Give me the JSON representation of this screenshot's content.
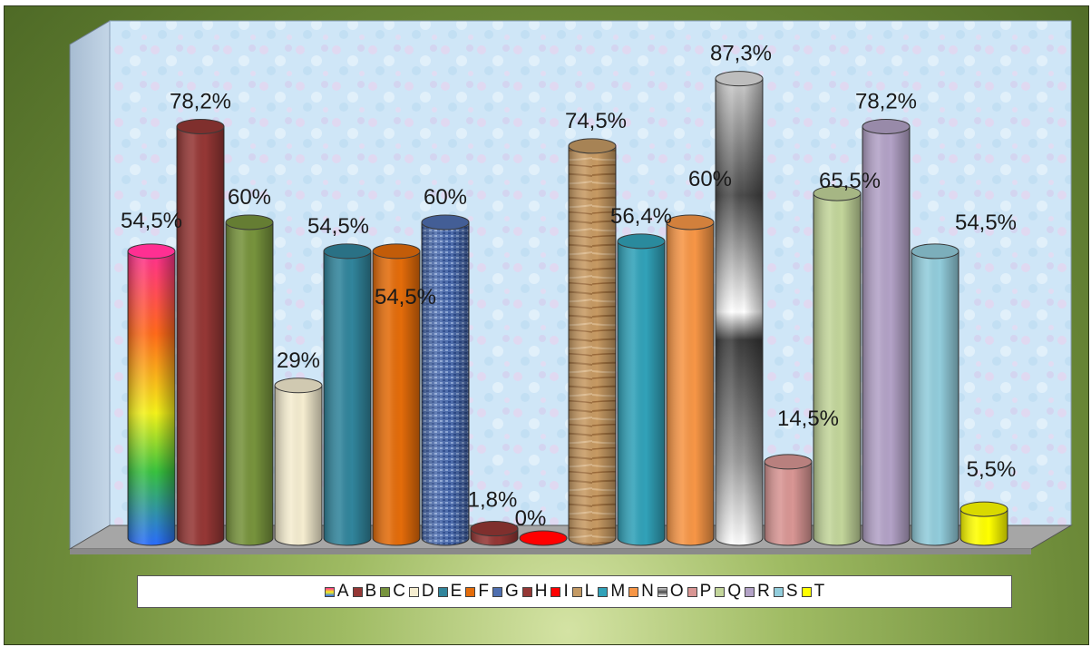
{
  "chart_data": {
    "type": "bar",
    "style": "3d-cylinder",
    "categories": [
      "A",
      "B",
      "C",
      "D",
      "E",
      "F",
      "G",
      "H",
      "I",
      "L",
      "M",
      "N",
      "O",
      "P",
      "Q",
      "R",
      "S",
      "T"
    ],
    "values": [
      54.5,
      78.2,
      60,
      29,
      54.5,
      54.5,
      60,
      1.8,
      0,
      74.5,
      56.4,
      60,
      87.3,
      14.5,
      65.5,
      78.2,
      54.5,
      5.5
    ],
    "data_labels": [
      "54,5%",
      "78,2%",
      "60%",
      "29%",
      "54,5%",
      "54,5%",
      "60%",
      "1,8%",
      "0%",
      "74,5%",
      "56,4%",
      "60%",
      "87,3%",
      "14,5%",
      "65,5%",
      "78,2%",
      "54,5%",
      "5,5%"
    ],
    "colors": [
      "rainbow",
      "#953735",
      "#77933c",
      "#f5edd0",
      "#31859c",
      "#e46c0a",
      "#4f6fb0",
      "#953735",
      "#ff0000",
      "#c49a64",
      "#31a2b9",
      "#f79646",
      "silver",
      "#d99694",
      "#c3d69b",
      "#b3a2c7",
      "#92cddc",
      "#ffff00"
    ],
    "ylim": [
      0,
      100
    ],
    "grid": false,
    "legend": "bottom",
    "title": "",
    "xlabel": "",
    "ylabel": ""
  }
}
